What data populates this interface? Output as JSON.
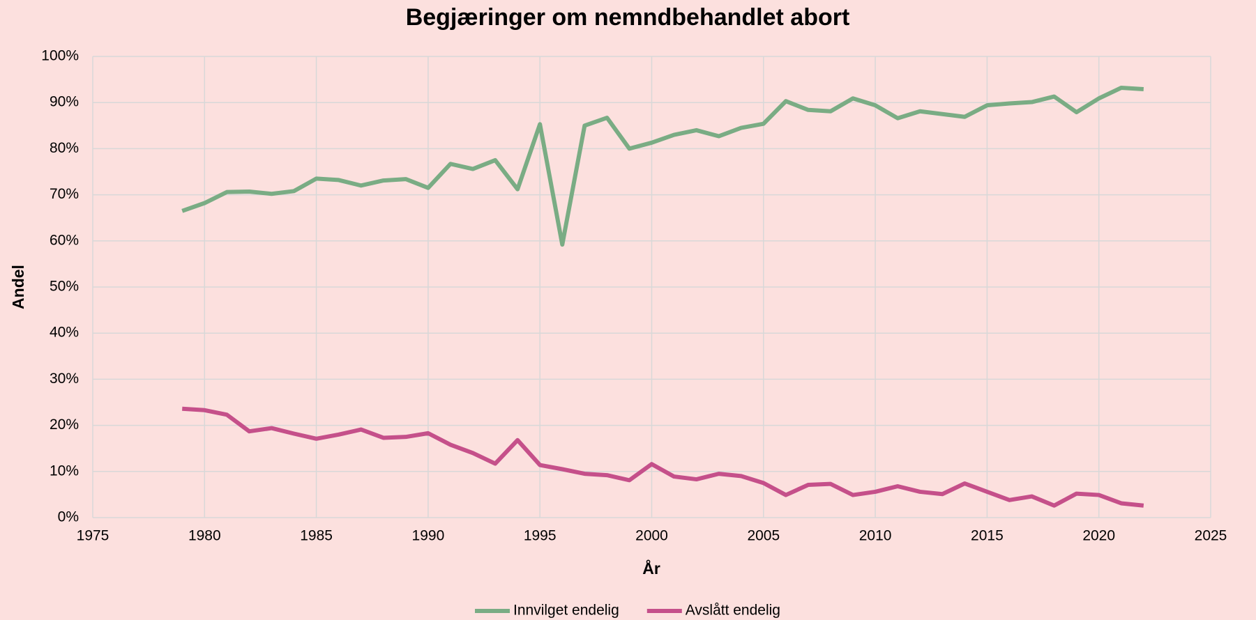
{
  "chart_data": {
    "type": "line",
    "title": "Begjæringer om nemndbehandlet abort",
    "x_label": "År",
    "y_label": "Andel",
    "x": [
      1979,
      1980,
      1981,
      1982,
      1983,
      1984,
      1985,
      1986,
      1987,
      1988,
      1989,
      1990,
      1991,
      1992,
      1993,
      1994,
      1995,
      1996,
      1997,
      1998,
      1999,
      2000,
      2001,
      2002,
      2003,
      2004,
      2005,
      2006,
      2007,
      2008,
      2009,
      2010,
      2011,
      2012,
      2013,
      2014,
      2015,
      2016,
      2017,
      2018,
      2019,
      2020,
      2021,
      2022
    ],
    "series": [
      {
        "name": "Innvilget endelig",
        "color": "#7aac84",
        "values": [
          66.5,
          68.2,
          70.6,
          70.7,
          70.2,
          70.8,
          73.5,
          73.2,
          72.0,
          73.1,
          73.4,
          71.5,
          76.7,
          75.6,
          77.5,
          71.2,
          85.3,
          59.2,
          85.0,
          86.7,
          80.0,
          81.3,
          83.0,
          84.0,
          82.7,
          84.5,
          85.4,
          90.3,
          88.4,
          88.1,
          90.9,
          89.4,
          86.6,
          88.1,
          87.5,
          86.9,
          89.4,
          89.8,
          90.1,
          91.3,
          87.9,
          90.9,
          93.2,
          92.9
        ]
      },
      {
        "name": "Avslått endelig",
        "color": "#c5508a",
        "values": [
          23.6,
          23.3,
          22.3,
          18.7,
          19.4,
          18.2,
          17.1,
          18.0,
          19.1,
          17.3,
          17.5,
          18.3,
          15.8,
          14.0,
          11.7,
          16.8,
          11.4,
          10.5,
          9.5,
          9.2,
          8.1,
          11.6,
          8.9,
          8.3,
          9.5,
          9.0,
          7.5,
          4.9,
          7.1,
          7.3,
          4.9,
          5.6,
          6.8,
          5.6,
          5.1,
          7.4,
          5.6,
          3.8,
          4.6,
          2.6,
          5.2,
          4.9,
          3.1,
          2.6
        ]
      }
    ],
    "xlim": [
      1975,
      2025
    ],
    "xticks": [
      1975,
      1980,
      1985,
      1990,
      1995,
      2000,
      2005,
      2010,
      2015,
      2020,
      2025
    ],
    "ylim": [
      0,
      100
    ],
    "yticks": [
      {
        "value": 0,
        "label": "0%"
      },
      {
        "value": 10,
        "label": "10%"
      },
      {
        "value": 20,
        "label": "20%"
      },
      {
        "value": 30,
        "label": "30%"
      },
      {
        "value": 40,
        "label": "40%"
      },
      {
        "value": 50,
        "label": "50%"
      },
      {
        "value": 60,
        "label": "60%"
      },
      {
        "value": 70,
        "label": "70%"
      },
      {
        "value": 80,
        "label": "80%"
      },
      {
        "value": 90,
        "label": "90%"
      },
      {
        "value": 100,
        "label": "100%"
      }
    ],
    "grid": true,
    "legend": "bottom"
  }
}
